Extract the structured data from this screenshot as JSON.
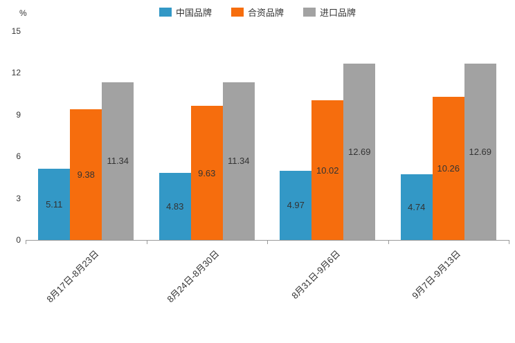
{
  "chart_data": {
    "type": "bar",
    "title": "",
    "unit_label": "%",
    "categories": [
      "8月17日-8月23日",
      "8月24日-8月30日",
      "8月31日-9月6日",
      "9月7日-9月13日"
    ],
    "series": [
      {
        "name": "中国品牌",
        "color": "#3398C6",
        "values": [
          5.11,
          4.83,
          4.97,
          4.74
        ]
      },
      {
        "name": "合资品牌",
        "color": "#F66D0D",
        "values": [
          9.38,
          9.63,
          10.02,
          10.26
        ]
      },
      {
        "name": "进口品牌",
        "color": "#A2A2A2",
        "values": [
          11.34,
          11.34,
          12.69,
          12.69
        ]
      }
    ],
    "ylim": [
      0,
      15
    ],
    "yticks": [
      0,
      3,
      6,
      9,
      12,
      15
    ],
    "legend_position": "top-center",
    "grid": false,
    "value_label_position": "inside-center",
    "value_label_decimals": 2,
    "axis_color": "#999999",
    "text_color": "#333333"
  }
}
